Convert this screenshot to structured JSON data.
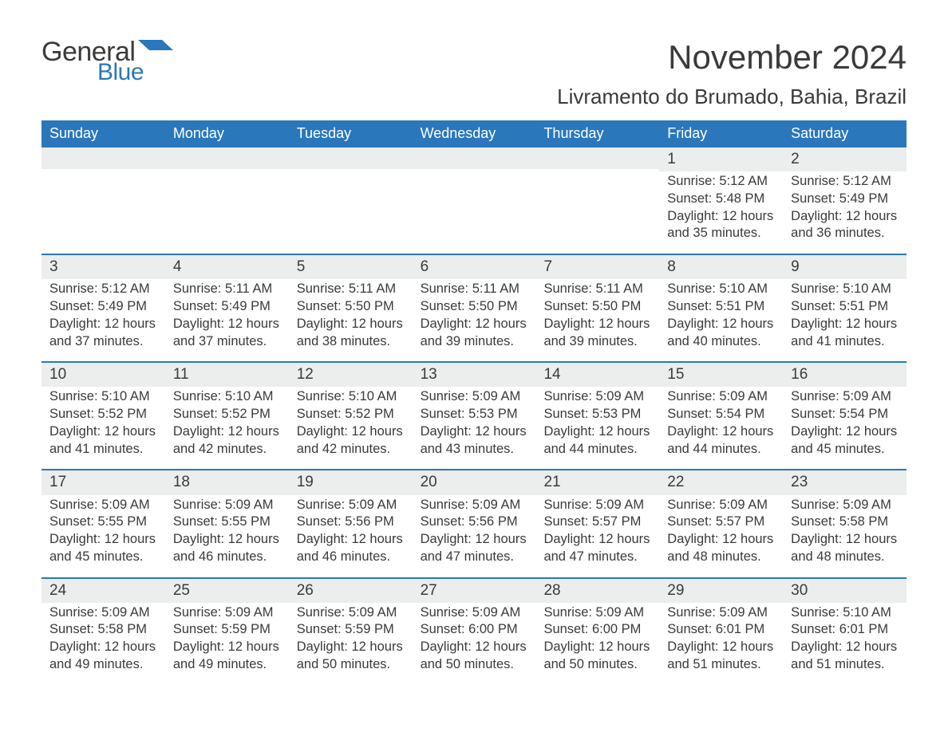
{
  "logo": {
    "text_general": "General",
    "text_blue": "Blue"
  },
  "title": "November 2024",
  "location": "Livramento do Brumado, Bahia, Brazil",
  "colors": {
    "header_bg": "#2a77bb",
    "header_text": "#ffffff",
    "daynum_bg": "#eceded",
    "body_text": "#3a3a3a",
    "week_border": "#2a77bb",
    "logo_general": "#3a3a3a",
    "logo_blue": "#2a77bb",
    "page_bg": "#ffffff"
  },
  "typography": {
    "title_fontsize": 42,
    "location_fontsize": 26,
    "dow_fontsize": 18,
    "daynum_fontsize": 19,
    "body_fontsize": 16.5,
    "logo_general_fontsize": 34,
    "logo_blue_fontsize": 30
  },
  "days_of_week": [
    "Sunday",
    "Monday",
    "Tuesday",
    "Wednesday",
    "Thursday",
    "Friday",
    "Saturday"
  ],
  "weeks": [
    [
      {
        "num": "",
        "sunrise": "",
        "sunset": "",
        "daylight": ""
      },
      {
        "num": "",
        "sunrise": "",
        "sunset": "",
        "daylight": ""
      },
      {
        "num": "",
        "sunrise": "",
        "sunset": "",
        "daylight": ""
      },
      {
        "num": "",
        "sunrise": "",
        "sunset": "",
        "daylight": ""
      },
      {
        "num": "",
        "sunrise": "",
        "sunset": "",
        "daylight": ""
      },
      {
        "num": "1",
        "sunrise": "Sunrise: 5:12 AM",
        "sunset": "Sunset: 5:48 PM",
        "daylight": "Daylight: 12 hours and 35 minutes."
      },
      {
        "num": "2",
        "sunrise": "Sunrise: 5:12 AM",
        "sunset": "Sunset: 5:49 PM",
        "daylight": "Daylight: 12 hours and 36 minutes."
      }
    ],
    [
      {
        "num": "3",
        "sunrise": "Sunrise: 5:12 AM",
        "sunset": "Sunset: 5:49 PM",
        "daylight": "Daylight: 12 hours and 37 minutes."
      },
      {
        "num": "4",
        "sunrise": "Sunrise: 5:11 AM",
        "sunset": "Sunset: 5:49 PM",
        "daylight": "Daylight: 12 hours and 37 minutes."
      },
      {
        "num": "5",
        "sunrise": "Sunrise: 5:11 AM",
        "sunset": "Sunset: 5:50 PM",
        "daylight": "Daylight: 12 hours and 38 minutes."
      },
      {
        "num": "6",
        "sunrise": "Sunrise: 5:11 AM",
        "sunset": "Sunset: 5:50 PM",
        "daylight": "Daylight: 12 hours and 39 minutes."
      },
      {
        "num": "7",
        "sunrise": "Sunrise: 5:11 AM",
        "sunset": "Sunset: 5:50 PM",
        "daylight": "Daylight: 12 hours and 39 minutes."
      },
      {
        "num": "8",
        "sunrise": "Sunrise: 5:10 AM",
        "sunset": "Sunset: 5:51 PM",
        "daylight": "Daylight: 12 hours and 40 minutes."
      },
      {
        "num": "9",
        "sunrise": "Sunrise: 5:10 AM",
        "sunset": "Sunset: 5:51 PM",
        "daylight": "Daylight: 12 hours and 41 minutes."
      }
    ],
    [
      {
        "num": "10",
        "sunrise": "Sunrise: 5:10 AM",
        "sunset": "Sunset: 5:52 PM",
        "daylight": "Daylight: 12 hours and 41 minutes."
      },
      {
        "num": "11",
        "sunrise": "Sunrise: 5:10 AM",
        "sunset": "Sunset: 5:52 PM",
        "daylight": "Daylight: 12 hours and 42 minutes."
      },
      {
        "num": "12",
        "sunrise": "Sunrise: 5:10 AM",
        "sunset": "Sunset: 5:52 PM",
        "daylight": "Daylight: 12 hours and 42 minutes."
      },
      {
        "num": "13",
        "sunrise": "Sunrise: 5:09 AM",
        "sunset": "Sunset: 5:53 PM",
        "daylight": "Daylight: 12 hours and 43 minutes."
      },
      {
        "num": "14",
        "sunrise": "Sunrise: 5:09 AM",
        "sunset": "Sunset: 5:53 PM",
        "daylight": "Daylight: 12 hours and 44 minutes."
      },
      {
        "num": "15",
        "sunrise": "Sunrise: 5:09 AM",
        "sunset": "Sunset: 5:54 PM",
        "daylight": "Daylight: 12 hours and 44 minutes."
      },
      {
        "num": "16",
        "sunrise": "Sunrise: 5:09 AM",
        "sunset": "Sunset: 5:54 PM",
        "daylight": "Daylight: 12 hours and 45 minutes."
      }
    ],
    [
      {
        "num": "17",
        "sunrise": "Sunrise: 5:09 AM",
        "sunset": "Sunset: 5:55 PM",
        "daylight": "Daylight: 12 hours and 45 minutes."
      },
      {
        "num": "18",
        "sunrise": "Sunrise: 5:09 AM",
        "sunset": "Sunset: 5:55 PM",
        "daylight": "Daylight: 12 hours and 46 minutes."
      },
      {
        "num": "19",
        "sunrise": "Sunrise: 5:09 AM",
        "sunset": "Sunset: 5:56 PM",
        "daylight": "Daylight: 12 hours and 46 minutes."
      },
      {
        "num": "20",
        "sunrise": "Sunrise: 5:09 AM",
        "sunset": "Sunset: 5:56 PM",
        "daylight": "Daylight: 12 hours and 47 minutes."
      },
      {
        "num": "21",
        "sunrise": "Sunrise: 5:09 AM",
        "sunset": "Sunset: 5:57 PM",
        "daylight": "Daylight: 12 hours and 47 minutes."
      },
      {
        "num": "22",
        "sunrise": "Sunrise: 5:09 AM",
        "sunset": "Sunset: 5:57 PM",
        "daylight": "Daylight: 12 hours and 48 minutes."
      },
      {
        "num": "23",
        "sunrise": "Sunrise: 5:09 AM",
        "sunset": "Sunset: 5:58 PM",
        "daylight": "Daylight: 12 hours and 48 minutes."
      }
    ],
    [
      {
        "num": "24",
        "sunrise": "Sunrise: 5:09 AM",
        "sunset": "Sunset: 5:58 PM",
        "daylight": "Daylight: 12 hours and 49 minutes."
      },
      {
        "num": "25",
        "sunrise": "Sunrise: 5:09 AM",
        "sunset": "Sunset: 5:59 PM",
        "daylight": "Daylight: 12 hours and 49 minutes."
      },
      {
        "num": "26",
        "sunrise": "Sunrise: 5:09 AM",
        "sunset": "Sunset: 5:59 PM",
        "daylight": "Daylight: 12 hours and 50 minutes."
      },
      {
        "num": "27",
        "sunrise": "Sunrise: 5:09 AM",
        "sunset": "Sunset: 6:00 PM",
        "daylight": "Daylight: 12 hours and 50 minutes."
      },
      {
        "num": "28",
        "sunrise": "Sunrise: 5:09 AM",
        "sunset": "Sunset: 6:00 PM",
        "daylight": "Daylight: 12 hours and 50 minutes."
      },
      {
        "num": "29",
        "sunrise": "Sunrise: 5:09 AM",
        "sunset": "Sunset: 6:01 PM",
        "daylight": "Daylight: 12 hours and 51 minutes."
      },
      {
        "num": "30",
        "sunrise": "Sunrise: 5:10 AM",
        "sunset": "Sunset: 6:01 PM",
        "daylight": "Daylight: 12 hours and 51 minutes."
      }
    ]
  ]
}
